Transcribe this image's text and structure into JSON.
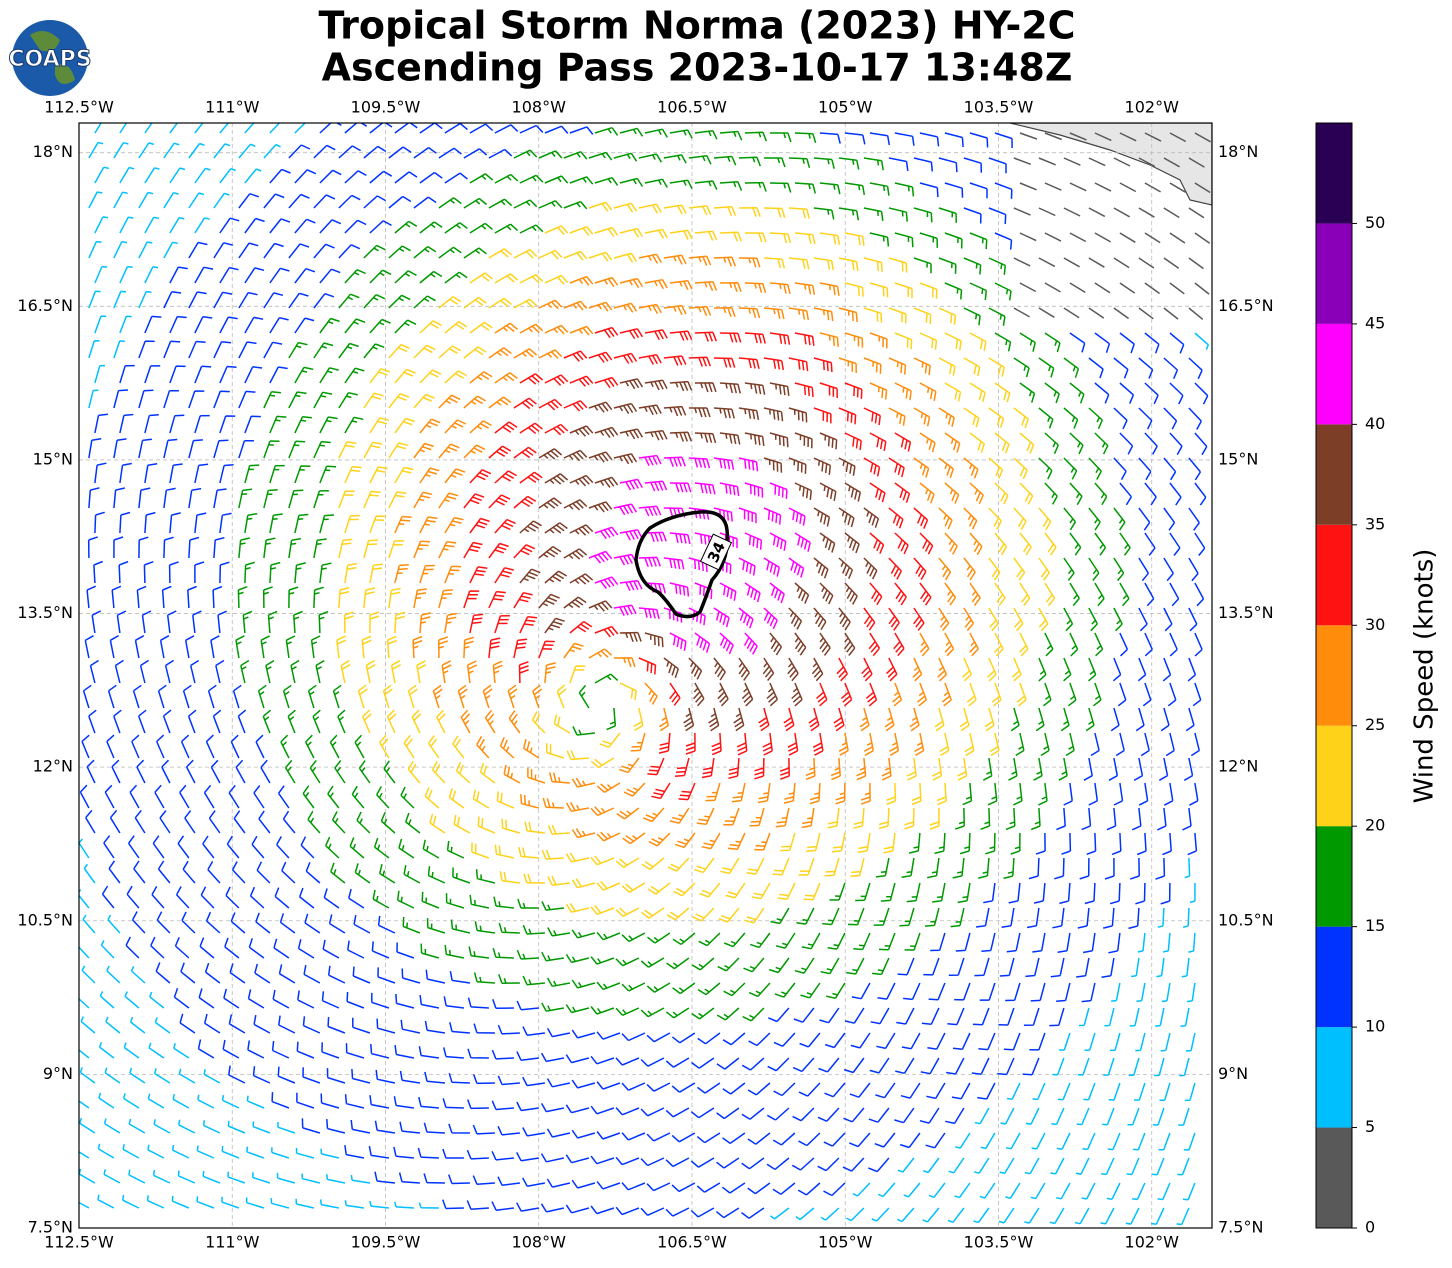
{
  "title": [
    "Tropical Storm Norma (2023) HY-2C",
    "Ascending Pass 2023-10-17 13:48Z"
  ],
  "logo": "COAPS",
  "map": {
    "xlim": [
      -112.5,
      -101.41
    ],
    "ylim": [
      7.5,
      18.29
    ],
    "grid": true,
    "xticks": [
      {
        "value": -112.5,
        "label": "112.5°W"
      },
      {
        "value": -111,
        "label": "111°W"
      },
      {
        "value": -109.5,
        "label": "109.5°W"
      },
      {
        "value": -108,
        "label": "108°W"
      },
      {
        "value": -106.5,
        "label": "106.5°W"
      },
      {
        "value": -105,
        "label": "105°W"
      },
      {
        "value": -103.5,
        "label": "103.5°W"
      },
      {
        "value": -102,
        "label": "102°W"
      }
    ],
    "yticks": [
      {
        "value": 7.5,
        "label": "7.5°N"
      },
      {
        "value": 9,
        "label": "9°N"
      },
      {
        "value": 10.5,
        "label": "10.5°N"
      },
      {
        "value": 12,
        "label": "12°N"
      },
      {
        "value": 13.5,
        "label": "13.5°N"
      },
      {
        "value": 15,
        "label": "15°N"
      },
      {
        "value": 16.5,
        "label": "16.5°N"
      },
      {
        "value": 18,
        "label": "18°N"
      }
    ]
  },
  "contour": {
    "value": 34
  },
  "colorbar": {
    "label": "Wind Speed (knots)",
    "lim": [
      0,
      55
    ],
    "ticks": [
      0,
      5,
      10,
      15,
      20,
      25,
      30,
      35,
      40,
      45,
      50
    ],
    "colors": [
      "#595959",
      "#00bfff",
      "#0033ff",
      "#009900",
      "#ffd21a",
      "#ff8c0a",
      "#ff1212",
      "#7d3e28",
      "#ff00ff",
      "#8a00b8",
      "#2a0055"
    ]
  }
}
